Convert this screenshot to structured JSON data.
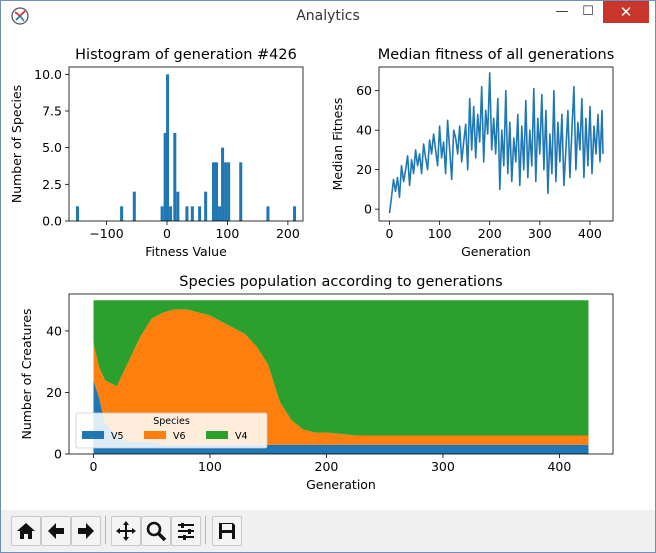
{
  "window": {
    "title": "Analytics",
    "min_glyph": "—",
    "max_glyph": "☐",
    "close_glyph": "✕"
  },
  "toolbar": {
    "items": [
      {
        "name": "home-icon"
      },
      {
        "name": "back-icon"
      },
      {
        "name": "forward-icon"
      },
      {
        "name": "pan-icon"
      },
      {
        "name": "zoom-icon"
      },
      {
        "name": "subplots-icon"
      },
      {
        "name": "save-icon"
      }
    ]
  },
  "chart_data": [
    {
      "type": "bar",
      "title": "Histogram of generation #426",
      "xlabel": "Fitness Value",
      "ylabel": "Number of Species",
      "xlim": [
        -162,
        225
      ],
      "ylim": [
        0,
        10.5
      ],
      "xticks": [
        -100,
        0,
        100,
        200
      ],
      "yticks": [
        0.0,
        2.5,
        5.0,
        7.5,
        10.0
      ],
      "bin_width": 5,
      "bins": [
        {
          "x": -148,
          "value": 1
        },
        {
          "x": -75,
          "value": 1
        },
        {
          "x": -54,
          "value": 2
        },
        {
          "x": -8,
          "value": 1
        },
        {
          "x": -3,
          "value": 6
        },
        {
          "x": 1,
          "value": 10
        },
        {
          "x": 6,
          "value": 1
        },
        {
          "x": 13,
          "value": 6
        },
        {
          "x": 18,
          "value": 2
        },
        {
          "x": 33,
          "value": 1
        },
        {
          "x": 42,
          "value": 1
        },
        {
          "x": 54,
          "value": 1
        },
        {
          "x": 64,
          "value": 2
        },
        {
          "x": 77,
          "value": 4
        },
        {
          "x": 82,
          "value": 4
        },
        {
          "x": 87,
          "value": 1
        },
        {
          "x": 92,
          "value": 5
        },
        {
          "x": 97,
          "value": 4
        },
        {
          "x": 102,
          "value": 4
        },
        {
          "x": 122,
          "value": 4
        },
        {
          "x": 167,
          "value": 1
        },
        {
          "x": 211,
          "value": 1
        }
      ]
    },
    {
      "type": "line",
      "title": "Median fitness of all generations",
      "xlabel": "Generation",
      "ylabel": "Median Fitness",
      "xlim": [
        -21,
        446
      ],
      "ylim": [
        -6,
        72
      ],
      "xticks": [
        0,
        100,
        200,
        300,
        400
      ],
      "yticks": [
        0,
        20,
        40,
        60
      ],
      "color": "#1f77b4",
      "points": [
        [
          0,
          -2
        ],
        [
          4,
          6
        ],
        [
          8,
          15
        ],
        [
          12,
          9
        ],
        [
          16,
          16
        ],
        [
          20,
          6
        ],
        [
          24,
          22
        ],
        [
          28,
          14
        ],
        [
          32,
          20
        ],
        [
          36,
          27
        ],
        [
          40,
          12
        ],
        [
          44,
          25
        ],
        [
          48,
          18
        ],
        [
          52,
          30
        ],
        [
          56,
          22
        ],
        [
          60,
          28
        ],
        [
          64,
          18
        ],
        [
          68,
          33
        ],
        [
          72,
          26
        ],
        [
          76,
          20
        ],
        [
          80,
          35
        ],
        [
          84,
          28
        ],
        [
          88,
          38
        ],
        [
          92,
          30
        ],
        [
          96,
          22
        ],
        [
          100,
          42
        ],
        [
          104,
          26
        ],
        [
          108,
          34
        ],
        [
          112,
          18
        ],
        [
          116,
          45
        ],
        [
          120,
          30
        ],
        [
          124,
          15
        ],
        [
          128,
          40
        ],
        [
          132,
          36
        ],
        [
          136,
          28
        ],
        [
          140,
          42
        ],
        [
          144,
          24
        ],
        [
          148,
          34
        ],
        [
          152,
          43
        ],
        [
          156,
          20
        ],
        [
          160,
          56
        ],
        [
          164,
          30
        ],
        [
          168,
          52
        ],
        [
          172,
          26
        ],
        [
          176,
          48
        ],
        [
          180,
          34
        ],
        [
          184,
          62
        ],
        [
          188,
          24
        ],
        [
          192,
          50
        ],
        [
          196,
          38
        ],
        [
          200,
          69
        ],
        [
          204,
          30
        ],
        [
          208,
          46
        ],
        [
          212,
          28
        ],
        [
          216,
          56
        ],
        [
          220,
          10
        ],
        [
          224,
          40
        ],
        [
          228,
          22
        ],
        [
          232,
          60
        ],
        [
          236,
          18
        ],
        [
          240,
          44
        ],
        [
          244,
          14
        ],
        [
          248,
          36
        ],
        [
          252,
          24
        ],
        [
          256,
          48
        ],
        [
          260,
          12
        ],
        [
          264,
          42
        ],
        [
          268,
          20
        ],
        [
          272,
          55
        ],
        [
          276,
          16
        ],
        [
          280,
          40
        ],
        [
          284,
          22
        ],
        [
          288,
          61
        ],
        [
          292,
          14
        ],
        [
          296,
          46
        ],
        [
          300,
          28
        ],
        [
          304,
          58
        ],
        [
          308,
          20
        ],
        [
          312,
          50
        ],
        [
          316,
          8
        ],
        [
          320,
          38
        ],
        [
          324,
          18
        ],
        [
          328,
          60
        ],
        [
          332,
          14
        ],
        [
          336,
          44
        ],
        [
          340,
          24
        ],
        [
          344,
          48
        ],
        [
          348,
          12
        ],
        [
          352,
          30
        ],
        [
          356,
          50
        ],
        [
          360,
          16
        ],
        [
          364,
          40
        ],
        [
          368,
          62
        ],
        [
          372,
          20
        ],
        [
          376,
          44
        ],
        [
          380,
          30
        ],
        [
          384,
          56
        ],
        [
          388,
          16
        ],
        [
          392,
          46
        ],
        [
          396,
          22
        ],
        [
          400,
          52
        ],
        [
          404,
          18
        ],
        [
          408,
          42
        ],
        [
          412,
          28
        ],
        [
          416,
          48
        ],
        [
          420,
          24
        ],
        [
          424,
          50
        ],
        [
          426,
          28
        ]
      ]
    },
    {
      "type": "area",
      "stacked": true,
      "title": "Species population according to generations",
      "xlabel": "Generation",
      "ylabel": "Number of Creatures",
      "xlim": [
        -21,
        446
      ],
      "ylim": [
        0,
        52
      ],
      "xticks": [
        0,
        100,
        200,
        300,
        400
      ],
      "yticks": [
        0,
        20,
        40
      ],
      "legend": {
        "title": "Species",
        "placement": "lower-left",
        "ncol": 3
      },
      "x": [
        0,
        5,
        10,
        15,
        20,
        30,
        40,
        50,
        60,
        70,
        80,
        90,
        100,
        110,
        120,
        130,
        140,
        150,
        160,
        170,
        180,
        190,
        200,
        225,
        250,
        275,
        300,
        325,
        350,
        375,
        400,
        425
      ],
      "series": [
        {
          "name": "V5",
          "color": "#1f77b4",
          "values": [
            24,
            18,
            10,
            8,
            6,
            4,
            4,
            4,
            3,
            3,
            3,
            3,
            3,
            3,
            3,
            3,
            3,
            3,
            3,
            3,
            3,
            3,
            3,
            3,
            3,
            3,
            3,
            3,
            3,
            3,
            3,
            3
          ]
        },
        {
          "name": "V6",
          "color": "#ff7f0e",
          "values": [
            12,
            10,
            14,
            15,
            16,
            26,
            34,
            40,
            43,
            44,
            44,
            43,
            42,
            40,
            38,
            36,
            32,
            26,
            14,
            8,
            5,
            4,
            4,
            3,
            3,
            3,
            3,
            3,
            3,
            3,
            3,
            3
          ]
        },
        {
          "name": "V4",
          "color": "#2ca02c",
          "values": [
            14,
            22,
            26,
            27,
            28,
            20,
            12,
            6,
            4,
            3,
            3,
            4,
            5,
            7,
            9,
            11,
            15,
            21,
            33,
            39,
            42,
            43,
            43,
            44,
            44,
            44,
            44,
            44,
            44,
            44,
            44,
            44
          ]
        }
      ]
    }
  ]
}
